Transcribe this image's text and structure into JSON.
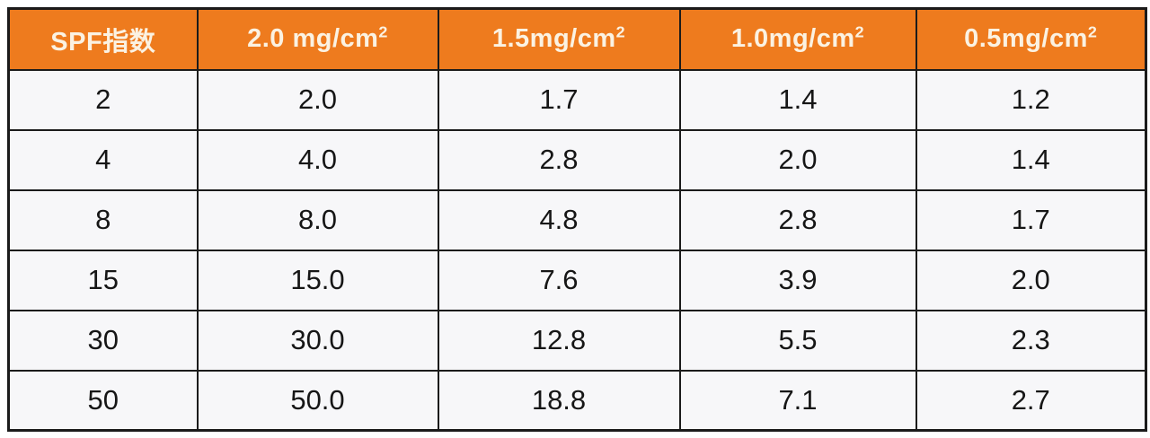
{
  "colors": {
    "header_bg": "#ee7b1e",
    "header_text": "#fbf2e2",
    "body_bg": "#f7f7f9",
    "border": "#1b1b1b",
    "page_bg": "#ffffff"
  },
  "table": {
    "columns": [
      {
        "label": "SPF指数",
        "sup": ""
      },
      {
        "label": "2.0 mg/cm",
        "sup": "2"
      },
      {
        "label": "1.5mg/cm",
        "sup": "2"
      },
      {
        "label": "1.0mg/cm",
        "sup": "2"
      },
      {
        "label": "0.5mg/cm",
        "sup": "2"
      }
    ],
    "rows": [
      [
        "2",
        "2.0",
        "1.7",
        "1.4",
        "1.2"
      ],
      [
        "4",
        "4.0",
        "2.8",
        "2.0",
        "1.4"
      ],
      [
        "8",
        "8.0",
        "4.8",
        "2.8",
        "1.7"
      ],
      [
        "15",
        "15.0",
        "7.6",
        "3.9",
        "2.0"
      ],
      [
        "30",
        "30.0",
        "12.8",
        "5.5",
        "2.3"
      ],
      [
        "50",
        "50.0",
        "18.8",
        "7.1",
        "2.7"
      ]
    ]
  },
  "chart_data": {
    "type": "table",
    "title": "",
    "categories": [
      "SPF指数",
      "2.0 mg/cm2",
      "1.5mg/cm2",
      "1.0mg/cm2",
      "0.5mg/cm2"
    ],
    "series": [
      {
        "name": "SPF 2",
        "values": [
          2,
          2.0,
          1.7,
          1.4,
          1.2
        ]
      },
      {
        "name": "SPF 4",
        "values": [
          4,
          4.0,
          2.8,
          2.0,
          1.4
        ]
      },
      {
        "name": "SPF 8",
        "values": [
          8,
          8.0,
          4.8,
          2.8,
          1.7
        ]
      },
      {
        "name": "SPF 15",
        "values": [
          15,
          15.0,
          7.6,
          3.9,
          2.0
        ]
      },
      {
        "name": "SPF 30",
        "values": [
          30,
          30.0,
          12.8,
          5.5,
          2.3
        ]
      },
      {
        "name": "SPF 50",
        "values": [
          50,
          50.0,
          18.8,
          7.1,
          2.7
        ]
      }
    ]
  }
}
